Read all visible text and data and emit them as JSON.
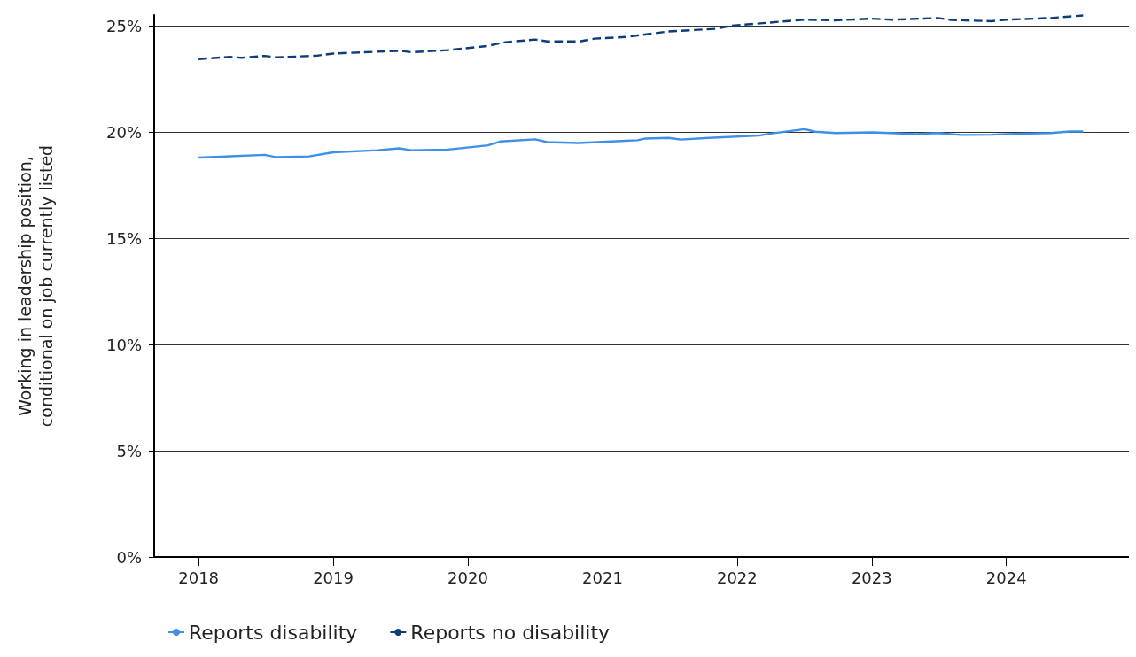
{
  "chart_data": {
    "type": "line",
    "ylabel": "Working in leadership position,\nconditional on job currently listed",
    "xlim": [
      2017.67,
      2024.91
    ],
    "xticks": [
      2018,
      2019,
      2020,
      2021,
      2022,
      2023,
      2024
    ],
    "ylim": [
      0,
      25.5
    ],
    "yticks": [
      {
        "value": 0,
        "label": "0%"
      },
      {
        "value": 5,
        "label": "5%"
      },
      {
        "value": 10,
        "label": "10%"
      },
      {
        "value": 15,
        "label": "15%"
      },
      {
        "value": 20,
        "label": "20%"
      },
      {
        "value": 25,
        "label": "25%"
      }
    ],
    "grid": "y",
    "legend": "bottom left",
    "marker": "none",
    "series": [
      {
        "name": "Reports disability",
        "color": "#3d8fe8",
        "line_style": "solid",
        "x": [
          2018.0,
          2018.49,
          2018.58,
          2018.82,
          2019.0,
          2019.33,
          2019.49,
          2019.58,
          2019.85,
          2020.15,
          2020.24,
          2020.5,
          2020.59,
          2020.82,
          2021.14,
          2021.26,
          2021.32,
          2021.49,
          2021.58,
          2021.79,
          2022.16,
          2022.26,
          2022.5,
          2022.58,
          2022.73,
          2023.0,
          2023.33,
          2023.49,
          2023.66,
          2023.89,
          2024.0,
          2024.33,
          2024.47,
          2024.57
        ],
        "values": [
          18.79,
          18.92,
          18.81,
          18.85,
          19.04,
          19.14,
          19.23,
          19.14,
          19.17,
          19.37,
          19.55,
          19.65,
          19.52,
          19.48,
          19.57,
          19.61,
          19.69,
          19.72,
          19.64,
          19.72,
          19.83,
          19.93,
          20.13,
          20.01,
          19.95,
          19.98,
          19.9,
          19.95,
          19.86,
          19.87,
          19.9,
          19.95,
          20.02,
          20.02
        ]
      },
      {
        "name": "Reports no disability",
        "color": "#0b3d7a",
        "line_style": "dashed",
        "x": [
          2018.0,
          2018.23,
          2018.32,
          2018.49,
          2018.58,
          2018.88,
          2019.0,
          2019.5,
          2019.58,
          2019.85,
          2020.15,
          2020.26,
          2020.5,
          2020.59,
          2020.83,
          2020.94,
          2021.18,
          2021.26,
          2021.49,
          2021.84,
          2021.96,
          2022.5,
          2022.73,
          2023.0,
          2023.15,
          2023.49,
          2023.59,
          2023.89,
          2024.0,
          2024.33,
          2024.57
        ],
        "values": [
          23.43,
          23.53,
          23.49,
          23.58,
          23.51,
          23.59,
          23.69,
          23.82,
          23.75,
          23.85,
          24.05,
          24.21,
          24.35,
          24.26,
          24.26,
          24.39,
          24.47,
          24.54,
          24.73,
          24.85,
          25.0,
          25.28,
          25.25,
          25.33,
          25.28,
          25.36,
          25.27,
          25.21,
          25.28,
          25.36,
          25.48
        ]
      }
    ]
  }
}
